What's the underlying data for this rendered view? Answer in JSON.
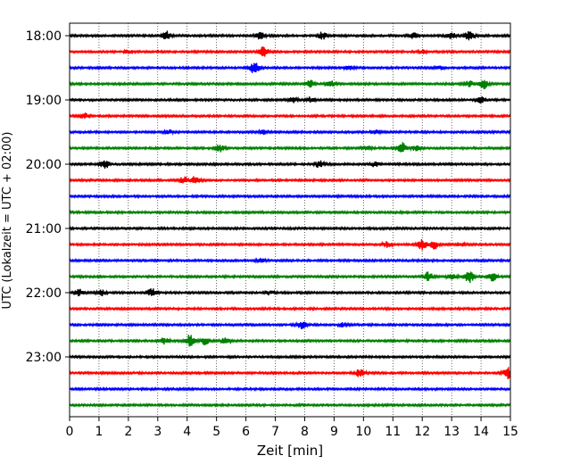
{
  "chart_data": {
    "type": "line",
    "title": "",
    "xlabel": "Zeit  [min]",
    "ylabel": "UTC (Lokalzeit = UTC + 02:00)",
    "xlim": [
      0,
      15
    ],
    "x_ticks": [
      0,
      1,
      2,
      3,
      4,
      5,
      6,
      7,
      8,
      9,
      10,
      11,
      12,
      13,
      14,
      15
    ],
    "x_tick_labels": [
      "0",
      "1",
      "2",
      "3",
      "4",
      "5",
      "6",
      "7",
      "8",
      "9",
      "10",
      "11",
      "12",
      "13",
      "14",
      "15"
    ],
    "grid": "vertical-dotted",
    "trace_interval_min": 15,
    "y_ticks": [
      "18:00",
      "19:00",
      "20:00",
      "21:00",
      "22:00",
      "23:00"
    ],
    "color_cycle": [
      "#000000",
      "#ff0000",
      "#0000ff",
      "#008000"
    ],
    "traces": [
      {
        "start": "18:00",
        "events": [
          [
            3.3,
            5
          ],
          [
            6.5,
            4
          ],
          [
            8.6,
            4
          ],
          [
            11.7,
            3
          ],
          [
            13.0,
            3
          ],
          [
            13.6,
            6
          ]
        ]
      },
      {
        "start": "18:15",
        "events": [
          [
            6.6,
            6
          ],
          [
            2.0,
            2
          ],
          [
            12.0,
            2
          ]
        ]
      },
      {
        "start": "18:30",
        "events": [
          [
            6.3,
            7
          ],
          [
            9.5,
            2
          ],
          [
            12.6,
            2
          ]
        ]
      },
      {
        "start": "18:45",
        "events": [
          [
            8.2,
            4
          ],
          [
            8.9,
            3
          ],
          [
            13.6,
            3
          ],
          [
            14.1,
            5
          ]
        ]
      },
      {
        "start": "19:00",
        "events": [
          [
            7.6,
            3
          ],
          [
            8.2,
            3
          ],
          [
            14.0,
            3
          ]
        ]
      },
      {
        "start": "19:15",
        "events": [
          [
            0.5,
            3
          ]
        ]
      },
      {
        "start": "19:30",
        "events": [
          [
            3.4,
            2
          ],
          [
            6.6,
            2
          ],
          [
            10.4,
            2
          ]
        ]
      },
      {
        "start": "19:45",
        "events": [
          [
            5.1,
            4
          ],
          [
            10.1,
            2
          ],
          [
            11.3,
            6
          ],
          [
            11.8,
            3
          ]
        ]
      },
      {
        "start": "20:00",
        "events": [
          [
            1.2,
            5
          ],
          [
            8.5,
            4
          ],
          [
            10.4,
            3
          ]
        ]
      },
      {
        "start": "20:15",
        "events": [
          [
            3.9,
            4
          ],
          [
            4.3,
            5
          ]
        ]
      },
      {
        "start": "20:30",
        "events": []
      },
      {
        "start": "20:45",
        "events": []
      },
      {
        "start": "21:00",
        "events": []
      },
      {
        "start": "21:15",
        "events": [
          [
            10.8,
            3
          ],
          [
            12.0,
            6
          ],
          [
            12.4,
            5
          ],
          [
            13.3,
            2
          ]
        ]
      },
      {
        "start": "21:30",
        "events": [
          [
            6.5,
            2
          ]
        ]
      },
      {
        "start": "21:45",
        "events": [
          [
            12.2,
            5
          ],
          [
            13.0,
            4
          ],
          [
            13.6,
            7
          ],
          [
            14.4,
            6
          ]
        ]
      },
      {
        "start": "22:00",
        "events": [
          [
            0.3,
            4
          ],
          [
            1.1,
            3
          ],
          [
            2.8,
            5
          ],
          [
            6.8,
            2
          ]
        ]
      },
      {
        "start": "22:15",
        "events": []
      },
      {
        "start": "22:30",
        "events": [
          [
            7.9,
            4
          ],
          [
            9.3,
            2
          ]
        ]
      },
      {
        "start": "22:45",
        "events": [
          [
            3.2,
            4
          ],
          [
            4.1,
            7
          ],
          [
            4.6,
            4
          ],
          [
            5.3,
            3
          ]
        ]
      },
      {
        "start": "23:00",
        "events": []
      },
      {
        "start": "23:15",
        "events": [
          [
            9.9,
            5
          ],
          [
            14.9,
            6
          ]
        ]
      },
      {
        "start": "23:30",
        "events": []
      },
      {
        "start": "23:45",
        "events": []
      }
    ]
  }
}
